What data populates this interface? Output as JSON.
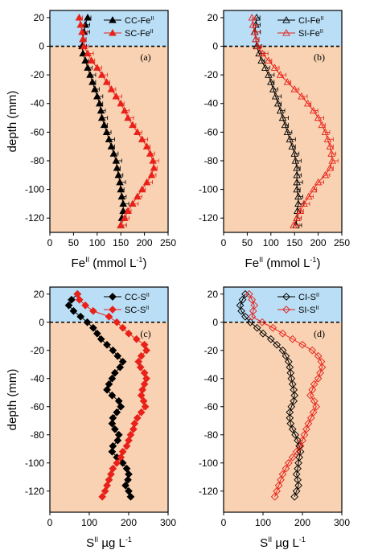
{
  "colors": {
    "water": "#b9def5",
    "sediment": "#f8d2b2",
    "red": "#e8211a",
    "black": "#000000"
  },
  "chart_data": [
    {
      "type": "line",
      "panel_label": "(a)",
      "ylabel": "depth (mm)",
      "xlabel_main": "Fe",
      "xlabel_sup": "II",
      "xlabel_tail": " (mmol L",
      "xlabel_sup2": "-1",
      "xlabel_end": ")",
      "xlim": [
        0,
        250
      ],
      "xticks": [
        0,
        50,
        100,
        150,
        200,
        250
      ],
      "ylim": [
        -130,
        25
      ],
      "yticks": [
        20,
        0,
        -20,
        -40,
        -60,
        -80,
        -100,
        -120
      ],
      "legend_position": "top-right",
      "series": [
        {
          "name_main": "CC-Fe",
          "name_sup": "II",
          "marker": "triangle",
          "filled": true,
          "color": "#000000",
          "error_bars": true,
          "depth": [
            20,
            15,
            10,
            5,
            0,
            -5,
            -10,
            -15,
            -20,
            -25,
            -30,
            -35,
            -40,
            -45,
            -50,
            -55,
            -60,
            -65,
            -70,
            -75,
            -80,
            -85,
            -90,
            -95,
            -100,
            -105,
            -110,
            -115,
            -120,
            -125
          ],
          "values": [
            80,
            75,
            72,
            70,
            68,
            70,
            75,
            80,
            85,
            90,
            95,
            100,
            105,
            108,
            110,
            115,
            120,
            125,
            130,
            135,
            140,
            142,
            145,
            148,
            150,
            152,
            155,
            155,
            152,
            150
          ]
        },
        {
          "name_main": "SC-Fe",
          "name_sup": "II",
          "marker": "triangle",
          "filled": true,
          "color": "#e8211a",
          "error_bars": true,
          "depth": [
            20,
            15,
            10,
            5,
            0,
            -5,
            -10,
            -15,
            -20,
            -25,
            -30,
            -35,
            -40,
            -45,
            -50,
            -55,
            -60,
            -65,
            -70,
            -75,
            -80,
            -85,
            -90,
            -95,
            -100,
            -105,
            -110,
            -115,
            -120,
            -125
          ],
          "values": [
            62,
            65,
            68,
            70,
            72,
            80,
            88,
            100,
            110,
            120,
            130,
            140,
            150,
            158,
            165,
            175,
            185,
            195,
            205,
            212,
            218,
            220,
            215,
            205,
            195,
            185,
            175,
            165,
            158,
            150
          ]
        }
      ]
    },
    {
      "type": "line",
      "panel_label": "(b)",
      "ylabel": "",
      "xlabel_main": "Fe",
      "xlabel_sup": "II",
      "xlabel_tail": " (mmol L",
      "xlabel_sup2": "-1",
      "xlabel_end": ")",
      "xlim": [
        0,
        250
      ],
      "xticks": [
        0,
        50,
        100,
        150,
        200,
        250
      ],
      "ylim": [
        -130,
        25
      ],
      "yticks": [
        20,
        0,
        -20,
        -40,
        -60,
        -80,
        -100,
        -120
      ],
      "legend_position": "top-right",
      "series": [
        {
          "name_main": "CI-Fe",
          "name_sup": "II",
          "marker": "triangle",
          "filled": false,
          "color": "#000000",
          "error_bars": true,
          "depth": [
            20,
            15,
            10,
            5,
            0,
            -5,
            -10,
            -15,
            -20,
            -25,
            -30,
            -35,
            -40,
            -45,
            -50,
            -55,
            -60,
            -65,
            -70,
            -75,
            -80,
            -85,
            -90,
            -95,
            -100,
            -105,
            -110,
            -115,
            -120,
            -125
          ],
          "values": [
            70,
            68,
            66,
            68,
            70,
            75,
            80,
            88,
            95,
            100,
            105,
            110,
            115,
            120,
            125,
            130,
            135,
            140,
            145,
            150,
            152,
            155,
            155,
            155,
            155,
            158,
            158,
            156,
            155,
            153
          ]
        },
        {
          "name_main": "SI-Fe",
          "name_sup": "II",
          "marker": "triangle",
          "filled": false,
          "color": "#e8211a",
          "error_bars": true,
          "depth": [
            20,
            15,
            10,
            5,
            0,
            -5,
            -10,
            -15,
            -20,
            -25,
            -30,
            -35,
            -40,
            -45,
            -50,
            -55,
            -60,
            -65,
            -70,
            -75,
            -80,
            -85,
            -90,
            -95,
            -100,
            -105,
            -110,
            -115,
            -120,
            -125
          ],
          "values": [
            60,
            62,
            65,
            68,
            72,
            82,
            95,
            108,
            120,
            135,
            150,
            165,
            178,
            190,
            200,
            208,
            215,
            220,
            225,
            228,
            230,
            225,
            215,
            200,
            190,
            180,
            170,
            162,
            155,
            148
          ]
        }
      ]
    },
    {
      "type": "line",
      "panel_label": "(c)",
      "ylabel": "depth (mm)",
      "xlabel_main": "S",
      "xlabel_sup": "II",
      "xlabel_tail": " µg L",
      "xlabel_sup2": "-1",
      "xlabel_end": "",
      "xlim": [
        0,
        300
      ],
      "xticks": [
        0,
        100,
        200,
        300
      ],
      "ylim": [
        -135,
        25
      ],
      "yticks": [
        20,
        0,
        -20,
        -40,
        -60,
        -80,
        -100,
        -120
      ],
      "legend_position": "top-right",
      "series": [
        {
          "name_main": "CC-S",
          "name_sup": "II",
          "marker": "diamond",
          "filled": true,
          "color": "#000000",
          "error_bars": false,
          "depth": [
            20,
            16,
            12,
            8,
            4,
            0,
            -4,
            -8,
            -12,
            -16,
            -20,
            -24,
            -28,
            -32,
            -36,
            -40,
            -44,
            -48,
            -52,
            -56,
            -60,
            -64,
            -68,
            -72,
            -76,
            -80,
            -84,
            -88,
            -92,
            -96,
            -100,
            -104,
            -108,
            -112,
            -116,
            -120,
            -124
          ],
          "values": [
            70,
            55,
            48,
            60,
            78,
            95,
            110,
            120,
            130,
            145,
            160,
            172,
            185,
            178,
            165,
            158,
            150,
            145,
            158,
            175,
            180,
            170,
            160,
            158,
            165,
            175,
            172,
            160,
            158,
            170,
            185,
            195,
            200,
            198,
            192,
            200,
            205
          ]
        },
        {
          "name_main": "SC-S",
          "name_sup": "II",
          "marker": "diamond",
          "filled": true,
          "color": "#e8211a",
          "error_bars": false,
          "depth": [
            20,
            16,
            12,
            8,
            4,
            0,
            -4,
            -8,
            -12,
            -16,
            -20,
            -24,
            -28,
            -32,
            -36,
            -40,
            -44,
            -48,
            -52,
            -56,
            -60,
            -64,
            -68,
            -72,
            -76,
            -80,
            -84,
            -88,
            -92,
            -96,
            -100,
            -104,
            -108,
            -112,
            -116,
            -120,
            -124
          ],
          "values": [
            70,
            75,
            90,
            110,
            150,
            170,
            185,
            200,
            220,
            240,
            245,
            232,
            225,
            230,
            240,
            245,
            240,
            235,
            232,
            238,
            242,
            232,
            222,
            215,
            212,
            205,
            200,
            195,
            185,
            180,
            170,
            160,
            155,
            150,
            145,
            140,
            133
          ]
        }
      ]
    },
    {
      "type": "line",
      "panel_label": "(d)",
      "ylabel": "",
      "xlabel_main": "S",
      "xlabel_sup": "II",
      "xlabel_tail": " µg L",
      "xlabel_sup2": "-1",
      "xlabel_end": "",
      "xlim": [
        0,
        300
      ],
      "xticks": [
        0,
        100,
        200,
        300
      ],
      "ylim": [
        -135,
        25
      ],
      "yticks": [
        20,
        0,
        -20,
        -40,
        -60,
        -80,
        -100,
        -120
      ],
      "legend_position": "top-right",
      "series": [
        {
          "name_main": "CI-S",
          "name_sup": "II",
          "marker": "diamond",
          "filled": false,
          "color": "#000000",
          "error_bars": false,
          "depth": [
            20,
            16,
            12,
            8,
            4,
            0,
            -4,
            -8,
            -12,
            -16,
            -20,
            -24,
            -28,
            -32,
            -36,
            -40,
            -44,
            -48,
            -52,
            -56,
            -60,
            -64,
            -68,
            -72,
            -76,
            -80,
            -84,
            -88,
            -92,
            -96,
            -100,
            -104,
            -108,
            -112,
            -116,
            -120,
            -124
          ],
          "values": [
            55,
            48,
            42,
            45,
            55,
            68,
            85,
            100,
            120,
            135,
            150,
            158,
            165,
            168,
            170,
            172,
            175,
            178,
            180,
            178,
            172,
            168,
            168,
            170,
            175,
            182,
            188,
            192,
            195,
            192,
            190,
            188,
            185,
            188,
            190,
            185,
            180
          ]
        },
        {
          "name_main": "SI-S",
          "name_sup": "II",
          "marker": "diamond",
          "filled": false,
          "color": "#e8211a",
          "error_bars": false,
          "depth": [
            20,
            16,
            12,
            8,
            4,
            0,
            -4,
            -8,
            -12,
            -16,
            -20,
            -24,
            -28,
            -32,
            -36,
            -40,
            -44,
            -48,
            -52,
            -56,
            -60,
            -64,
            -68,
            -72,
            -76,
            -80,
            -84,
            -88,
            -92,
            -96,
            -100,
            -104,
            -108,
            -112,
            -116,
            -120,
            -124
          ],
          "values": [
            65,
            72,
            78,
            75,
            72,
            98,
            125,
            150,
            175,
            200,
            225,
            240,
            248,
            250,
            245,
            240,
            230,
            225,
            220,
            230,
            235,
            228,
            222,
            215,
            210,
            205,
            200,
            195,
            185,
            175,
            165,
            158,
            150,
            145,
            140,
            135,
            130
          ]
        }
      ]
    }
  ]
}
